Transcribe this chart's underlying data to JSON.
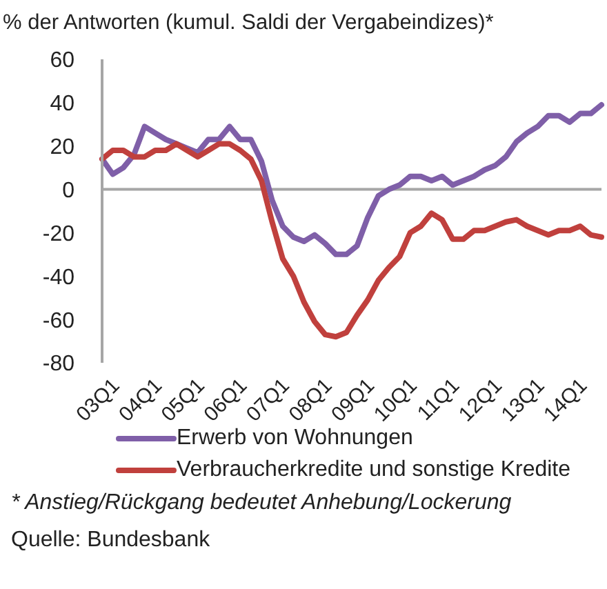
{
  "chart_data": {
    "type": "line",
    "ylabel": "% der Antworten (kumul. Saldi der Vergabeindizes)*",
    "categories": [
      "03Q1",
      null,
      null,
      null,
      "04Q1",
      null,
      null,
      null,
      "05Q1",
      null,
      null,
      null,
      "06Q1",
      null,
      null,
      null,
      "07Q1",
      null,
      null,
      null,
      "08Q1",
      null,
      null,
      null,
      "09Q1",
      null,
      null,
      null,
      "10Q1",
      null,
      null,
      null,
      "11Q1",
      null,
      null,
      null,
      "12Q1",
      null,
      null,
      null,
      "13Q1",
      null,
      null,
      null,
      "14Q1",
      null,
      null,
      null
    ],
    "series": [
      {
        "name": "Erwerb von Wohnungen",
        "color": "#7f5fa8",
        "values": [
          14,
          7,
          10,
          16,
          29,
          26,
          23,
          21,
          19,
          17,
          23,
          23,
          29,
          23,
          23,
          13,
          -5,
          -17,
          -22,
          -24,
          -21,
          -25,
          -30,
          -30,
          -26,
          -13,
          -3,
          0,
          2,
          6,
          6,
          4,
          6,
          2,
          4,
          6,
          9,
          11,
          15,
          22,
          26,
          29,
          34,
          34,
          31,
          35,
          35,
          39
        ]
      },
      {
        "name": "Verbraucherkredite und sonstige Kredite",
        "color": "#c0403d",
        "values": [
          14,
          18,
          18,
          15,
          15,
          18,
          18,
          21,
          18,
          15,
          18,
          21,
          21,
          18,
          14,
          4,
          -15,
          -32,
          -40,
          -52,
          -61,
          -67,
          -68,
          -66,
          -58,
          -51,
          -42,
          -36,
          -31,
          -20,
          -17,
          -11,
          -14,
          -23,
          -23,
          -19,
          -19,
          -17,
          -15,
          -14,
          -17,
          -19,
          -21,
          -19,
          -19,
          -17,
          -21,
          -22
        ]
      }
    ],
    "ylim": [
      -80,
      60
    ],
    "yticks": [
      -80,
      -60,
      -40,
      -20,
      0,
      20,
      40,
      60
    ],
    "ref_lines": [
      {
        "axis": "y",
        "value": 0,
        "color": "#a6a6a6"
      }
    ],
    "grid": false,
    "legend": "bottom",
    "marker": "none",
    "line_style": "solid",
    "annotations": [
      "* Anstieg/Rückgang bedeutet Anhebung/Lockerung",
      "Quelle: Bundesbank"
    ]
  }
}
